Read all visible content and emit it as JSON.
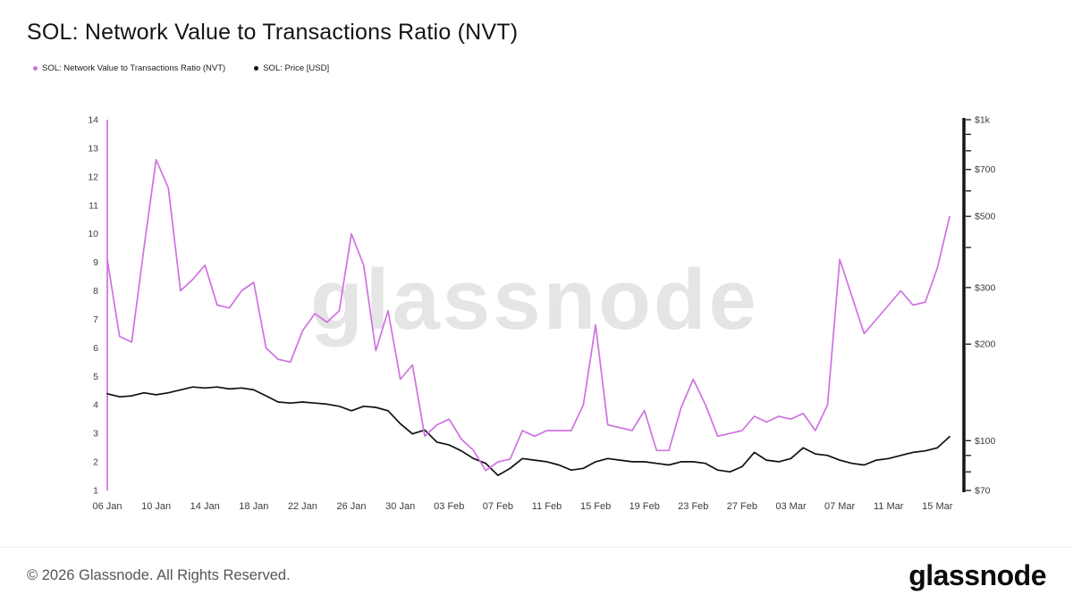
{
  "page": {
    "title": "SOL: Network Value to Transactions Ratio (NVT)",
    "watermark": "glassnode",
    "footer_copyright": "© 2026 Glassnode. All Rights Reserved.",
    "footer_logo": "glassnode"
  },
  "legend": [
    {
      "label": "SOL: Network Value to Transactions Ratio (NVT)",
      "color": "#cf72e0"
    },
    {
      "label": "SOL: Price [USD]",
      "color": "#111111"
    }
  ],
  "chart_data": {
    "type": "line",
    "title": "SOL: Network Value to Transactions Ratio (NVT)",
    "grid": false,
    "legend_position": "top-left",
    "x": [
      "06 Jan",
      "07 Jan",
      "08 Jan",
      "09 Jan",
      "10 Jan",
      "11 Jan",
      "12 Jan",
      "13 Jan",
      "14 Jan",
      "15 Jan",
      "16 Jan",
      "17 Jan",
      "18 Jan",
      "19 Jan",
      "20 Jan",
      "21 Jan",
      "22 Jan",
      "23 Jan",
      "24 Jan",
      "25 Jan",
      "26 Jan",
      "27 Jan",
      "28 Jan",
      "29 Jan",
      "30 Jan",
      "31 Jan",
      "01 Feb",
      "02 Feb",
      "03 Feb",
      "04 Feb",
      "05 Feb",
      "06 Feb",
      "07 Feb",
      "08 Feb",
      "09 Feb",
      "10 Feb",
      "11 Feb",
      "12 Feb",
      "13 Feb",
      "14 Feb",
      "15 Feb",
      "16 Feb",
      "17 Feb",
      "18 Feb",
      "19 Feb",
      "20 Feb",
      "21 Feb",
      "22 Feb",
      "23 Feb",
      "24 Feb",
      "25 Feb",
      "26 Feb",
      "27 Feb",
      "28 Feb",
      "01 Mar",
      "02 Mar",
      "03 Mar",
      "04 Mar",
      "05 Mar",
      "06 Mar",
      "07 Mar",
      "08 Mar",
      "09 Mar",
      "10 Mar",
      "11 Mar",
      "12 Mar",
      "13 Mar",
      "14 Mar",
      "15 Mar",
      "16 Mar"
    ],
    "x_tick_labels": [
      "06 Jan",
      "10 Jan",
      "14 Jan",
      "18 Jan",
      "22 Jan",
      "26 Jan",
      "30 Jan",
      "03 Feb",
      "07 Feb",
      "11 Feb",
      "15 Feb",
      "19 Feb",
      "23 Feb",
      "27 Feb",
      "03 Mar",
      "07 Mar",
      "11 Mar",
      "15 Mar"
    ],
    "series": [
      {
        "name": "SOL: Network Value to Transactions Ratio (NVT)",
        "axis": "left",
        "color": "#cf72e0",
        "values": [
          9.1,
          6.4,
          6.2,
          9.5,
          12.6,
          11.6,
          8.0,
          8.4,
          8.9,
          7.5,
          7.4,
          8.0,
          8.3,
          6.0,
          5.6,
          5.5,
          6.6,
          7.2,
          6.9,
          7.3,
          10.0,
          8.9,
          5.9,
          7.3,
          4.9,
          5.4,
          2.9,
          3.3,
          3.5,
          2.8,
          2.4,
          1.7,
          2.0,
          2.1,
          3.1,
          2.9,
          3.1,
          3.1,
          3.1,
          4.0,
          6.8,
          3.3,
          3.2,
          3.1,
          3.8,
          2.4,
          2.4,
          3.9,
          4.9,
          4.0,
          2.9,
          3.0,
          3.1,
          3.6,
          3.4,
          3.6,
          3.5,
          3.7,
          3.1,
          4.0,
          9.1,
          7.8,
          6.5,
          7.0,
          7.5,
          8.0,
          7.5,
          7.6,
          8.8,
          10.6
        ]
      },
      {
        "name": "SOL: Price [USD]",
        "axis": "right",
        "color": "#111111",
        "values": [
          140,
          137,
          138,
          141,
          139,
          141,
          144,
          147,
          146,
          147,
          145,
          146,
          144,
          138,
          132,
          131,
          132,
          131,
          130,
          128,
          124,
          128,
          127,
          124,
          113,
          105,
          108,
          99,
          97,
          93,
          88,
          85,
          78,
          82,
          88,
          87,
          86,
          84,
          81,
          82,
          86,
          88,
          87,
          86,
          86,
          85,
          84,
          86,
          86,
          85,
          81,
          80,
          83,
          92,
          87,
          86,
          88,
          95,
          91,
          90,
          87,
          85,
          84,
          87,
          88,
          90,
          92,
          93,
          95,
          103
        ]
      }
    ],
    "left_axis": {
      "scale": "linear",
      "min": 1,
      "max": 14,
      "ticks": [
        1,
        2,
        3,
        4,
        5,
        6,
        7,
        8,
        9,
        10,
        11,
        12,
        13,
        14
      ]
    },
    "right_axis": {
      "scale": "log",
      "min": 70,
      "max": 1000,
      "tick_labels": [
        "$1k",
        "$700",
        "$500",
        "$300",
        "$200",
        "$100",
        "$70"
      ],
      "tick_values": [
        1000,
        700,
        500,
        300,
        200,
        100,
        70
      ],
      "minor_ticks": [
        70,
        80,
        90,
        100,
        200,
        300,
        400,
        500,
        600,
        700,
        800,
        900,
        1000
      ]
    },
    "left_edge_spike": {
      "x_index": 0,
      "from": 1,
      "to": 14
    }
  }
}
